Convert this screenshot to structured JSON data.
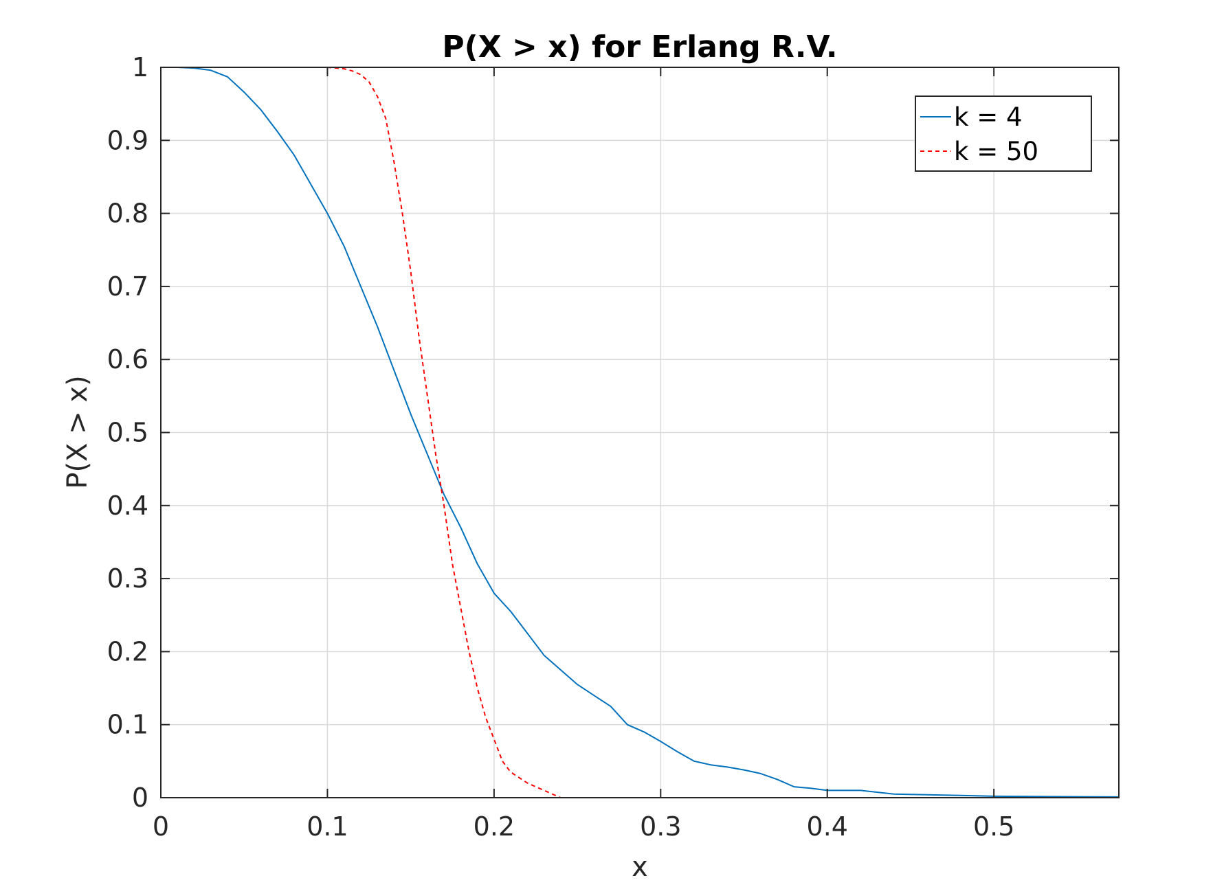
{
  "chart_data": {
    "type": "line",
    "title": "P(X > x) for Erlang R.V.",
    "xlabel": "x",
    "ylabel": "P(X > x)",
    "xlim": [
      0,
      0.575
    ],
    "ylim": [
      0,
      1
    ],
    "grid": true,
    "legend_position": "top-right",
    "x_ticks": [
      0,
      0.1,
      0.2,
      0.3,
      0.4,
      0.5
    ],
    "x_tick_labels": [
      "0",
      "0.1",
      "0.2",
      "0.3",
      "0.4",
      "0.5"
    ],
    "y_ticks": [
      0,
      0.1,
      0.2,
      0.3,
      0.4,
      0.5,
      0.6,
      0.7,
      0.8,
      0.9,
      1
    ],
    "y_tick_labels": [
      "0",
      "0.1",
      "0.2",
      "0.3",
      "0.4",
      "0.5",
      "0.6",
      "0.7",
      "0.8",
      "0.9",
      "1"
    ],
    "series": [
      {
        "name": "k = 4",
        "color": "#0072BD",
        "style": "solid",
        "x": [
          0,
          0.01,
          0.02,
          0.03,
          0.04,
          0.05,
          0.06,
          0.07,
          0.08,
          0.09,
          0.1,
          0.11,
          0.12,
          0.13,
          0.14,
          0.15,
          0.16,
          0.17,
          0.18,
          0.19,
          0.2,
          0.21,
          0.22,
          0.23,
          0.24,
          0.25,
          0.26,
          0.27,
          0.28,
          0.29,
          0.3,
          0.31,
          0.32,
          0.33,
          0.34,
          0.35,
          0.36,
          0.37,
          0.38,
          0.39,
          0.4,
          0.42,
          0.44,
          0.46,
          0.5,
          0.575
        ],
        "y": [
          1.0,
          1.0,
          0.999,
          0.996,
          0.987,
          0.966,
          0.942,
          0.912,
          0.88,
          0.84,
          0.8,
          0.755,
          0.7,
          0.645,
          0.585,
          0.525,
          0.47,
          0.415,
          0.37,
          0.32,
          0.28,
          0.255,
          0.225,
          0.195,
          0.175,
          0.155,
          0.14,
          0.125,
          0.1,
          0.09,
          0.077,
          0.063,
          0.05,
          0.045,
          0.042,
          0.038,
          0.033,
          0.025,
          0.015,
          0.013,
          0.01,
          0.01,
          0.005,
          0.004,
          0.002,
          0.001
        ]
      },
      {
        "name": "k = 50",
        "color": "#FF0000",
        "style": "dashed",
        "x": [
          0,
          0.05,
          0.1,
          0.11,
          0.115,
          0.12,
          0.125,
          0.13,
          0.135,
          0.14,
          0.145,
          0.15,
          0.155,
          0.16,
          0.165,
          0.17,
          0.175,
          0.18,
          0.185,
          0.19,
          0.195,
          0.2,
          0.205,
          0.21,
          0.22,
          0.23,
          0.24
        ],
        "y": [
          1.0,
          1.0,
          1.0,
          0.998,
          0.995,
          0.99,
          0.98,
          0.96,
          0.93,
          0.87,
          0.8,
          0.72,
          0.63,
          0.55,
          0.47,
          0.4,
          0.32,
          0.26,
          0.2,
          0.15,
          0.11,
          0.08,
          0.05,
          0.035,
          0.02,
          0.01,
          0.0
        ]
      }
    ]
  }
}
